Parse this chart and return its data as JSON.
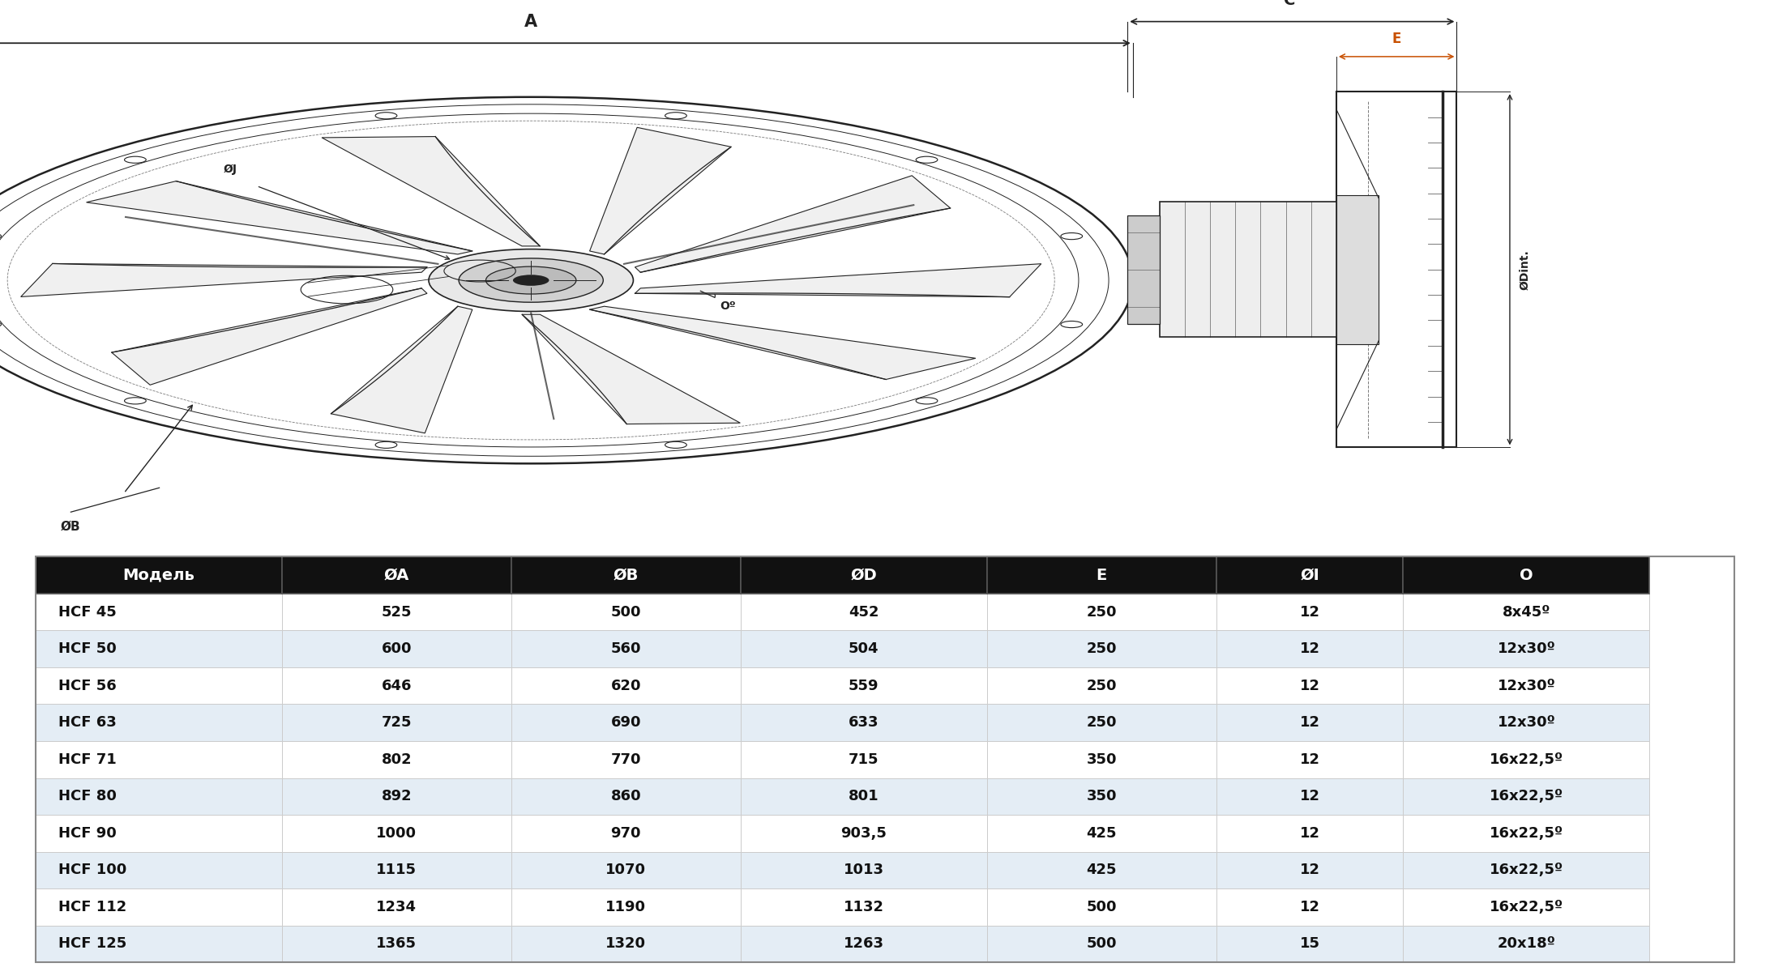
{
  "table_headers": [
    "Модель",
    "ØA",
    "ØB",
    "ØD",
    "E",
    "ØI",
    "O"
  ],
  "table_rows": [
    [
      "HCF 45",
      "525",
      "500",
      "452",
      "250",
      "12",
      "8x45º"
    ],
    [
      "HCF 50",
      "600",
      "560",
      "504",
      "250",
      "12",
      "12x30º"
    ],
    [
      "HCF 56",
      "646",
      "620",
      "559",
      "250",
      "12",
      "12x30º"
    ],
    [
      "HCF 63",
      "725",
      "690",
      "633",
      "250",
      "12",
      "12x30º"
    ],
    [
      "HCF 71",
      "802",
      "770",
      "715",
      "350",
      "12",
      "16x22,5º"
    ],
    [
      "HCF 80",
      "892",
      "860",
      "801",
      "350",
      "12",
      "16x22,5º"
    ],
    [
      "HCF 90",
      "1000",
      "970",
      "903,5",
      "425",
      "12",
      "16x22,5º"
    ],
    [
      "HCF 100",
      "1115",
      "1070",
      "1013",
      "425",
      "12",
      "16x22,5º"
    ],
    [
      "HCF 112",
      "1234",
      "1190",
      "1132",
      "500",
      "12",
      "16x22,5º"
    ],
    [
      "HCF 125",
      "1365",
      "1320",
      "1263",
      "500",
      "15",
      "20x18º"
    ]
  ],
  "header_bg": "#111111",
  "header_fg": "#ffffff",
  "row_bg_even": "#ffffff",
  "row_bg_odd": "#e4edf5",
  "row_fg": "#111111",
  "label_A": "A",
  "label_C": "C'",
  "label_E": "E",
  "label_J": "ØJ",
  "label_O": "Oº",
  "label_B": "ØB",
  "label_Dint": "ØDint.",
  "line_color": "#222222",
  "orange_color": "#c85000",
  "background_color": "#ffffff",
  "border_color": "#999999",
  "table_border_color": "#cccccc",
  "watermark_color": "#c8ddf0",
  "font_size_header": 14,
  "font_size_row": 13
}
